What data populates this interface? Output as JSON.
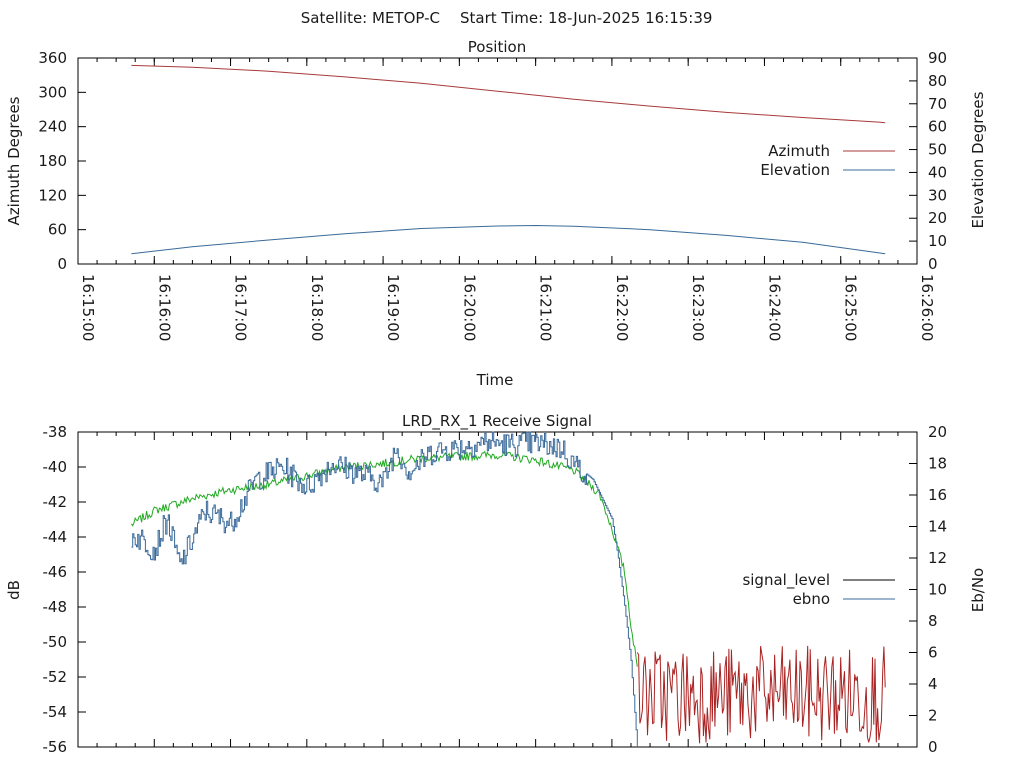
{
  "header": {
    "satellite": "Satellite: METOP-C",
    "start_time": "Start Time: 18-Jun-2025 16:15:39"
  },
  "colors": {
    "azimuth": "#a83a3a",
    "elevation": "#3a6a9a",
    "signal_green": "#22aa22",
    "signal_red": "#aa2222",
    "ebno_blue": "#3a6a9a",
    "legend_signal_level": "#000000",
    "legend_ebno": "#3a6a9a"
  },
  "chart_data": [
    {
      "type": "line",
      "title": "Position",
      "xlabel": "Time",
      "ylabel": "Azimuth Degrees",
      "y2label": "Elevation Degrees",
      "xlim": [
        "16:15:00",
        "16:26:00"
      ],
      "ylim": [
        0,
        360
      ],
      "y2lim": [
        0,
        90
      ],
      "x_ticks": [
        "16:15:00",
        "16:16:00",
        "16:17:00",
        "16:18:00",
        "16:19:00",
        "16:20:00",
        "16:21:00",
        "16:22:00",
        "16:23:00",
        "16:24:00",
        "16:25:00",
        "16:26:00"
      ],
      "y_ticks": [
        "0",
        "60",
        "120",
        "180",
        "240",
        "300",
        "360"
      ],
      "y2_ticks": [
        "0",
        "10",
        "20",
        "30",
        "40",
        "50",
        "60",
        "70",
        "80",
        "90"
      ],
      "legend_position": "right",
      "series": [
        {
          "name": "Azimuth",
          "axis": "y1",
          "x": [
            "16:15:42",
            "16:16:30",
            "16:17:30",
            "16:18:30",
            "16:19:30",
            "16:20:30",
            "16:21:30",
            "16:22:30",
            "16:23:30",
            "16:24:30",
            "16:25:30",
            "16:25:35"
          ],
          "y": [
            347,
            344,
            337,
            327,
            316,
            302,
            288,
            276,
            265,
            256,
            248,
            247
          ]
        },
        {
          "name": "Elevation",
          "axis": "y2",
          "x": [
            "16:15:42",
            "16:16:30",
            "16:17:30",
            "16:18:30",
            "16:19:30",
            "16:20:30",
            "16:21:00",
            "16:21:30",
            "16:22:30",
            "16:23:30",
            "16:24:30",
            "16:25:35"
          ],
          "y": [
            4.5,
            7.5,
            10.5,
            13.2,
            15.5,
            16.6,
            16.8,
            16.5,
            15.0,
            12.5,
            9.5,
            4.5
          ]
        }
      ]
    },
    {
      "type": "line",
      "title": "LRD_RX_1 Receive Signal",
      "xlabel": "",
      "ylabel": "dB",
      "y2label": "Eb/No",
      "xlim": [
        "16:15:00",
        "16:26:00"
      ],
      "ylim": [
        -56,
        -38
      ],
      "y2lim": [
        0,
        20
      ],
      "y_ticks": [
        "-56",
        "-54",
        "-52",
        "-50",
        "-48",
        "-46",
        "-44",
        "-42",
        "-40",
        "-38"
      ],
      "y2_ticks": [
        "0",
        "2",
        "4",
        "6",
        "8",
        "10",
        "12",
        "14",
        "16",
        "18",
        "20"
      ],
      "legend_position": "right",
      "series": [
        {
          "name": "signal_level",
          "axis": "y1",
          "x": [
            "16:15:42",
            "16:16:00",
            "16:16:30",
            "16:17:00",
            "16:17:30",
            "16:18:00",
            "16:18:30",
            "16:19:00",
            "16:19:30",
            "16:20:00",
            "16:20:30",
            "16:21:00",
            "16:21:30",
            "16:21:50",
            "16:22:00",
            "16:22:10",
            "16:22:15",
            "16:22:20"
          ],
          "y": [
            -43.3,
            -42.5,
            -41.8,
            -41.3,
            -41.0,
            -40.5,
            -40.0,
            -39.8,
            -39.5,
            -39.4,
            -39.3,
            -39.6,
            -40.2,
            -41.5,
            -43.5,
            -46.0,
            -49.0,
            -51.5
          ]
        },
        {
          "name": "ebno",
          "axis": "y2",
          "x": [
            "16:15:42",
            "16:15:50",
            "16:16:00",
            "16:16:10",
            "16:16:20",
            "16:16:40",
            "16:17:00",
            "16:17:20",
            "16:17:40",
            "16:18:00",
            "16:18:20",
            "16:18:40",
            "16:19:00",
            "16:19:10",
            "16:19:20",
            "16:19:40",
            "16:20:00",
            "16:20:20",
            "16:20:40",
            "16:21:00",
            "16:21:20",
            "16:21:30",
            "16:21:45",
            "16:22:00",
            "16:22:05",
            "16:22:10",
            "16:22:15",
            "16:22:20"
          ],
          "y": [
            13.4,
            13.2,
            12.5,
            14.5,
            11.5,
            15.0,
            14.2,
            17.0,
            17.8,
            16.5,
            18.0,
            17.4,
            16.8,
            19.0,
            17.5,
            18.8,
            19.0,
            19.4,
            19.2,
            19.3,
            19.0,
            18.0,
            17.0,
            14.5,
            12.0,
            9.0,
            5.5,
            0.0
          ]
        },
        {
          "name": "signal_noise_tail",
          "axis": "y1",
          "x_range": [
            "16:22:20",
            "16:25:35"
          ],
          "y_band": [
            -55.8,
            -50.2
          ]
        }
      ]
    }
  ]
}
